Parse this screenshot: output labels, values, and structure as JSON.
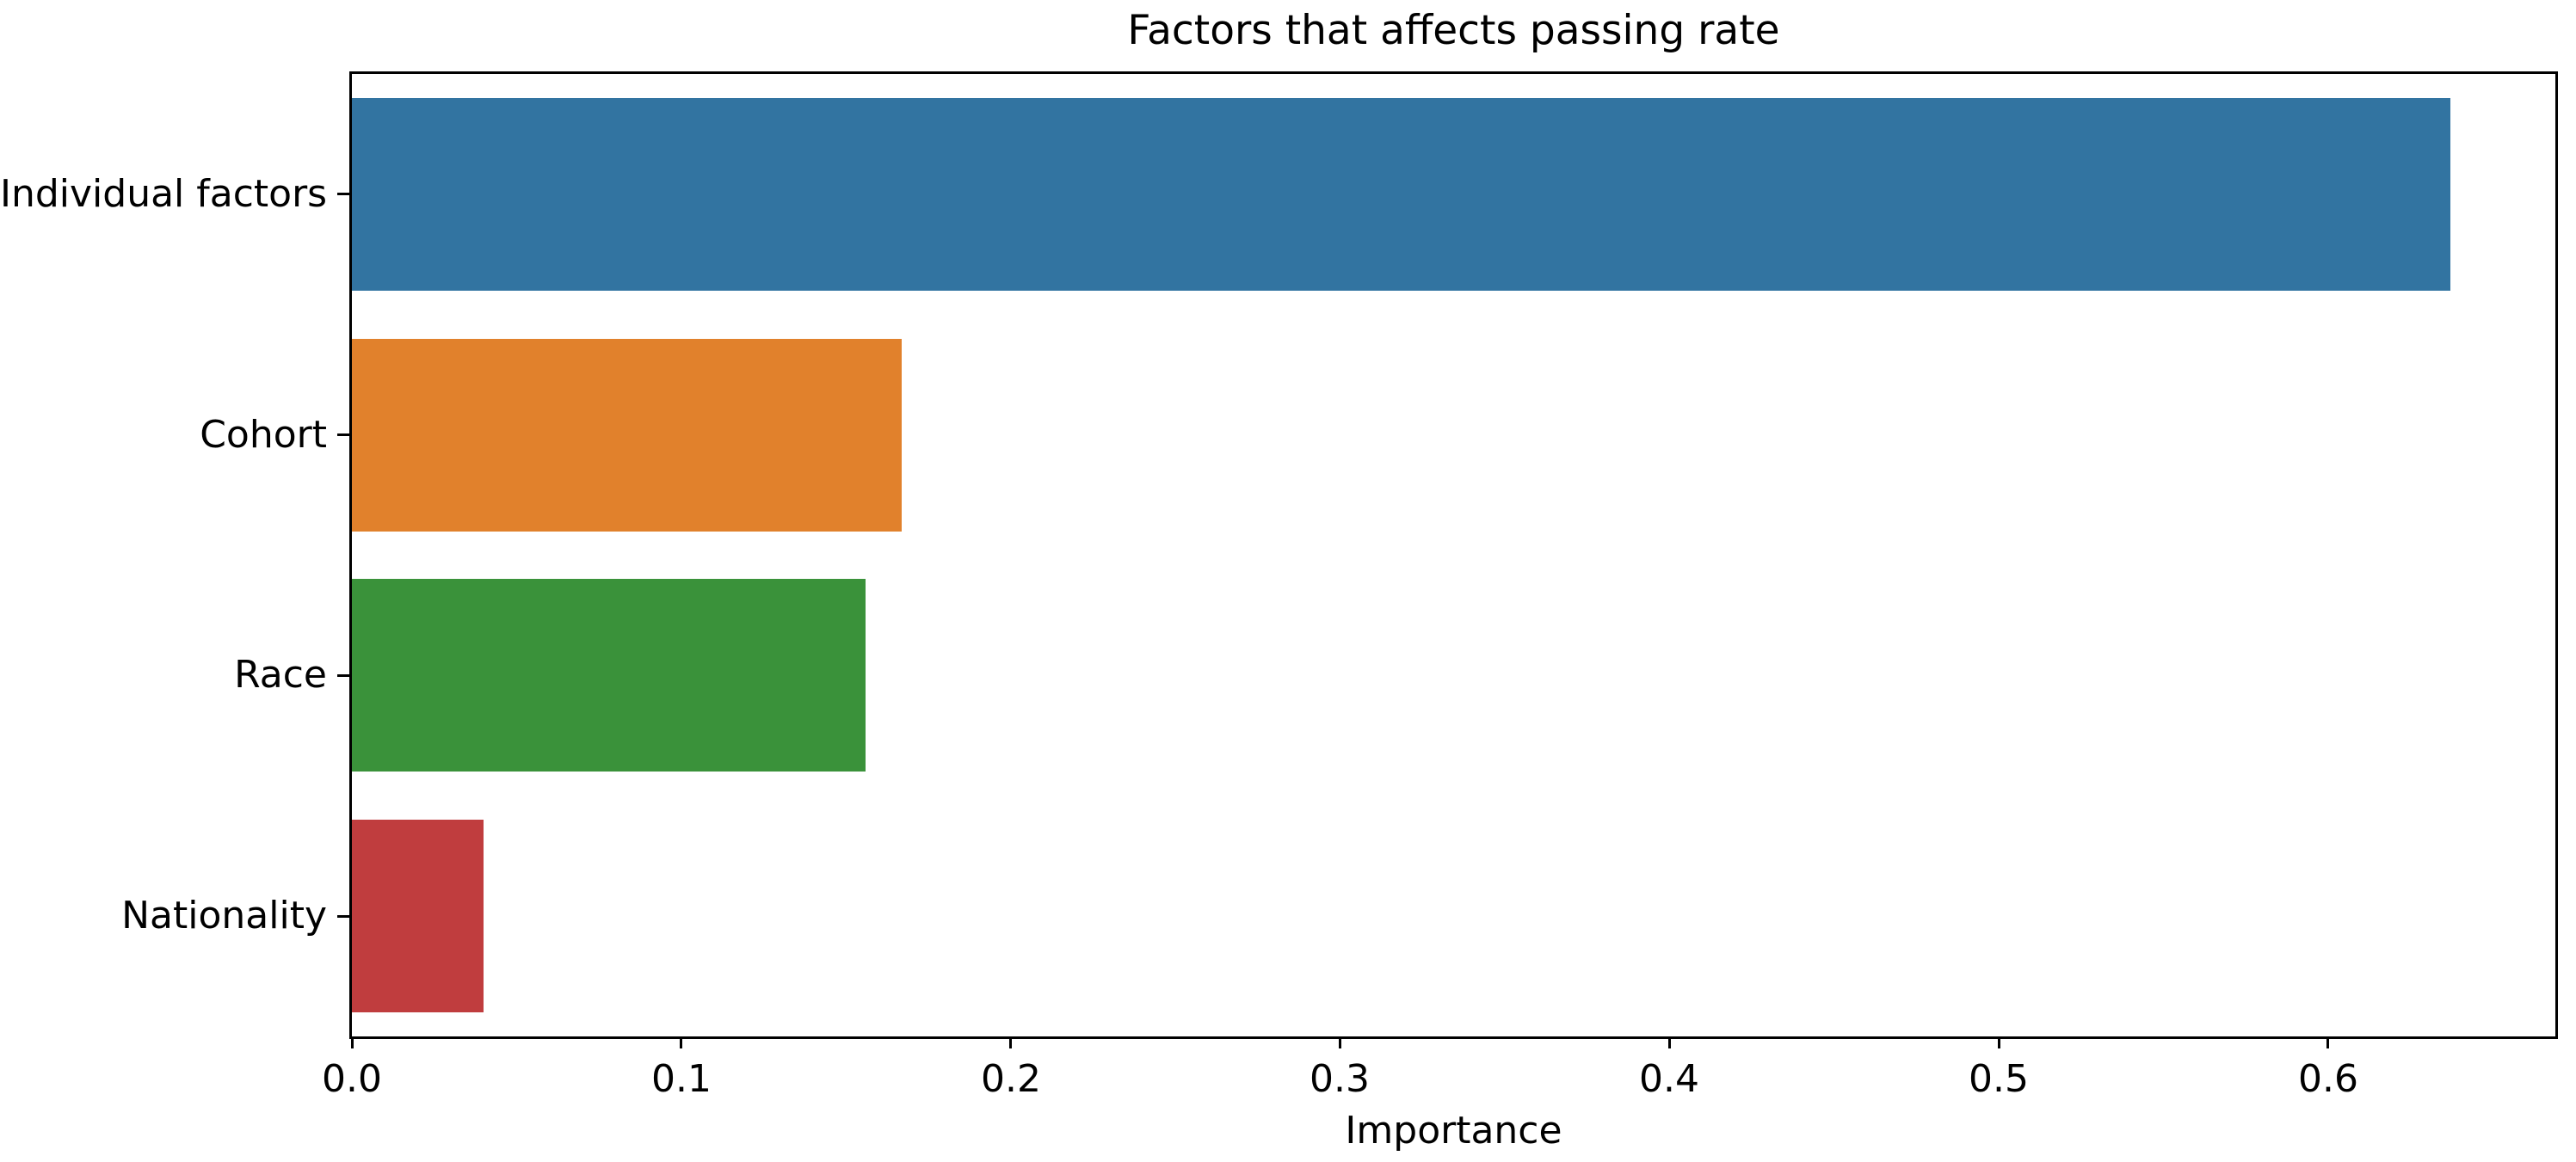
{
  "chart_data": {
    "type": "bar",
    "orientation": "horizontal",
    "title": "Factors that affects passing rate",
    "xlabel": "Importance",
    "ylabel": "",
    "categories": [
      "Individual factors",
      "Cohort",
      "Race",
      "Nationality"
    ],
    "values": [
      0.637,
      0.167,
      0.156,
      0.04
    ],
    "bar_colors": [
      "#3274a1",
      "#e1812c",
      "#3a923a",
      "#c03d3e"
    ],
    "xticks": [
      0.0,
      0.1,
      0.2,
      0.3,
      0.4,
      0.5,
      0.6
    ],
    "xtick_labels": [
      "0.0",
      "0.1",
      "0.2",
      "0.3",
      "0.4",
      "0.5",
      "0.6"
    ],
    "xlim": [
      0.0,
      0.669
    ],
    "grid": false,
    "legend": "none",
    "spine_color": "#000000",
    "text_color": "#000000",
    "background_color": "#ffffff",
    "bar_fraction_of_row": 0.8
  }
}
